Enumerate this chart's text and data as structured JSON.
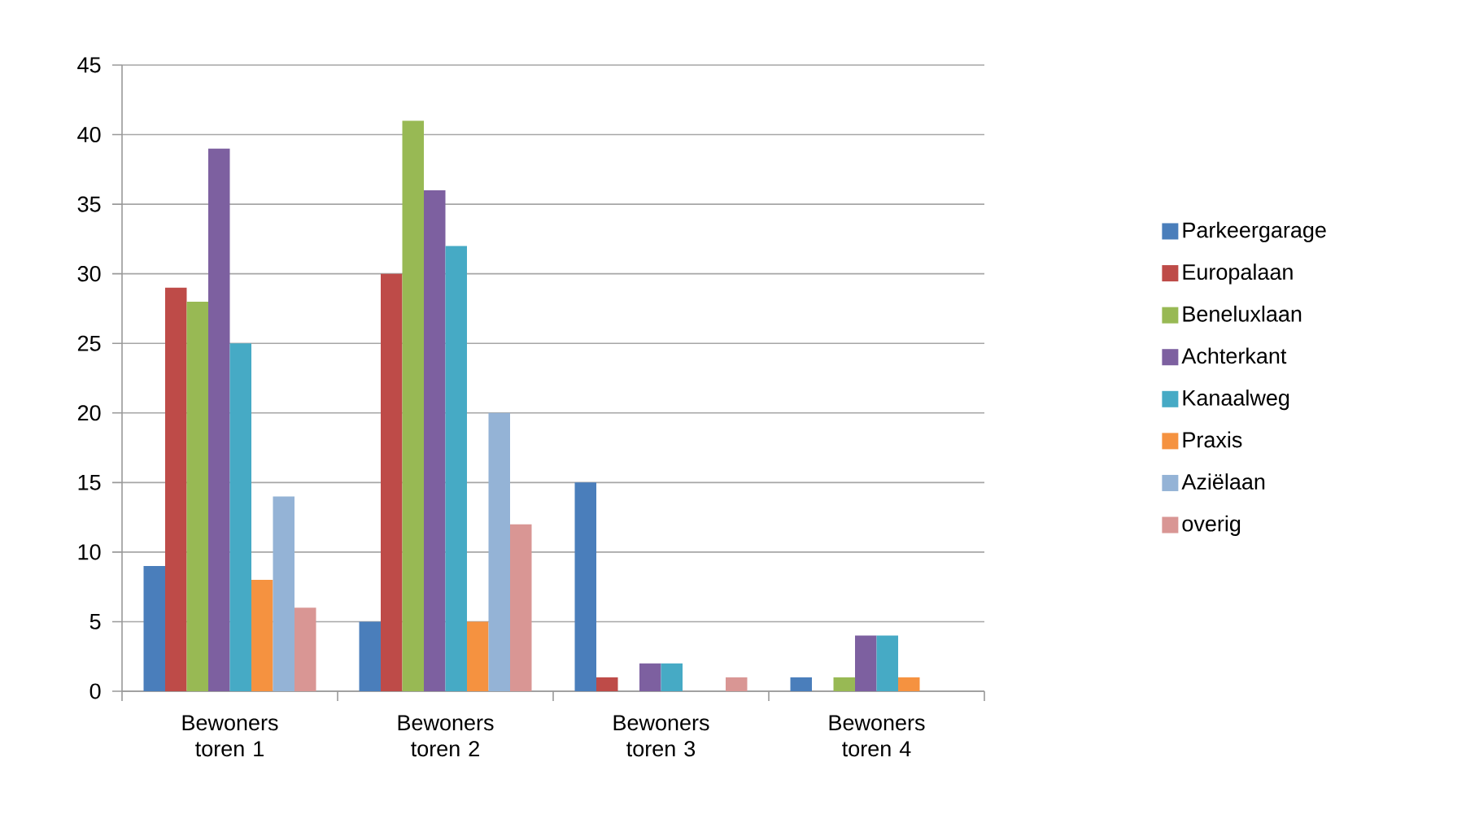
{
  "chart_data": {
    "type": "bar",
    "categories": [
      "Bewoners toren 1",
      "Bewoners toren 2",
      "Bewoners toren 3",
      "Bewoners toren 4"
    ],
    "series": [
      {
        "name": "Parkeergarage",
        "color": "#4a7ebb",
        "values": [
          9,
          5,
          15,
          1
        ]
      },
      {
        "name": "Europalaan",
        "color": "#be4b48",
        "values": [
          29,
          30,
          1,
          0
        ]
      },
      {
        "name": "Beneluxlaan",
        "color": "#98b954",
        "values": [
          28,
          41,
          0,
          1
        ]
      },
      {
        "name": "Achterkant",
        "color": "#7d60a0",
        "values": [
          39,
          36,
          2,
          4
        ]
      },
      {
        "name": "Kanaalweg",
        "color": "#46aac5",
        "values": [
          25,
          32,
          2,
          4
        ]
      },
      {
        "name": "Praxis",
        "color": "#f59240",
        "values": [
          8,
          5,
          0,
          1
        ]
      },
      {
        "name": "Aziëlaan",
        "color": "#94b3d6",
        "values": [
          14,
          20,
          0,
          0
        ]
      },
      {
        "name": "overig",
        "color": "#d99694",
        "values": [
          6,
          12,
          1,
          0
        ]
      }
    ],
    "ylim": [
      0,
      45
    ],
    "yticks": [
      0,
      5,
      10,
      15,
      20,
      25,
      30,
      35,
      40,
      45
    ],
    "grid": "y",
    "legend": "right"
  }
}
